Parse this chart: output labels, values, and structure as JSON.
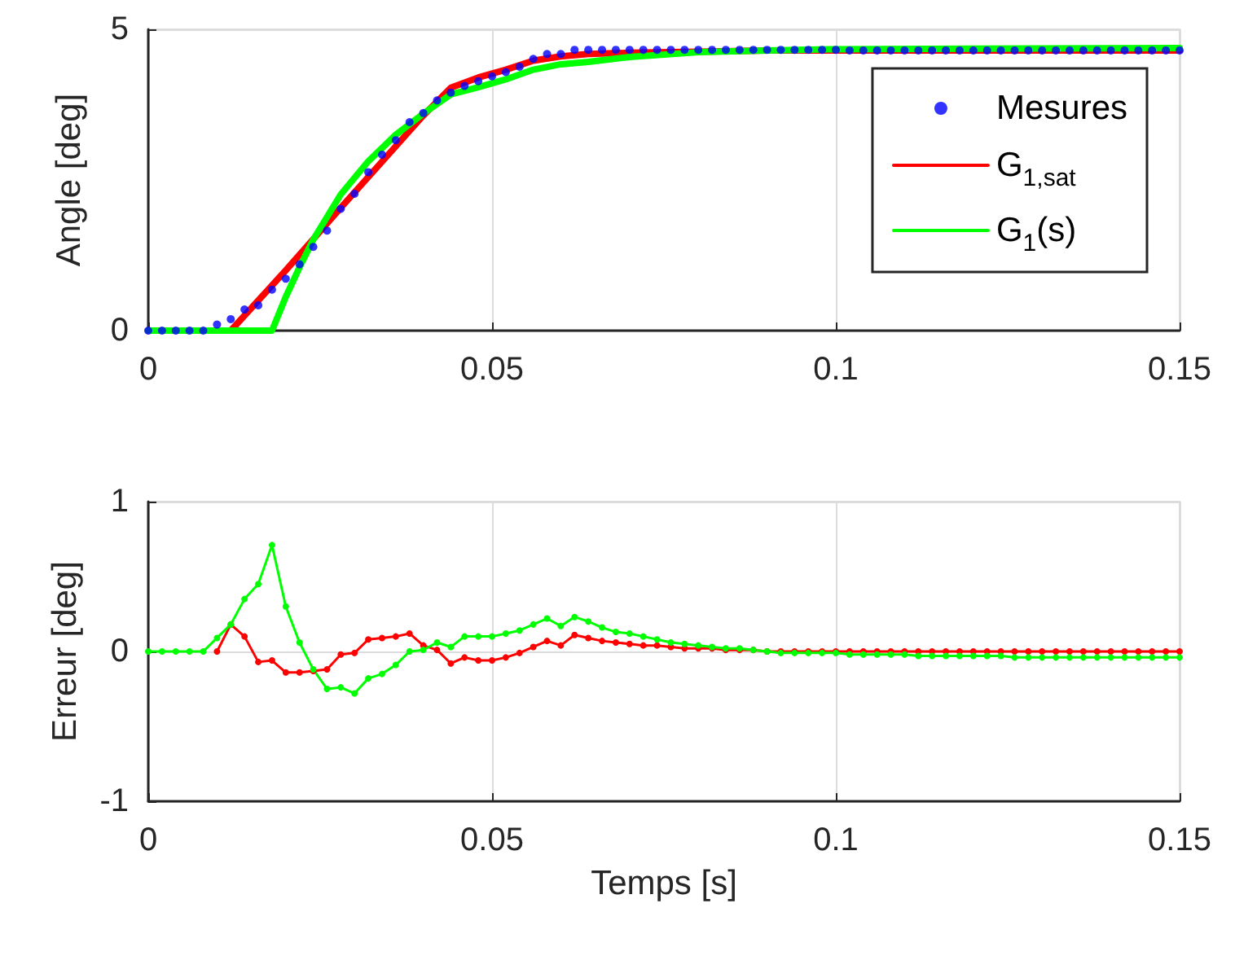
{
  "chart_data": [
    {
      "type": "line",
      "ylabel": "Angle [deg]",
      "xlim": [
        0,
        0.15
      ],
      "xticks": [
        0,
        0.05,
        0.1,
        0.15
      ],
      "ylim": [
        0,
        5
      ],
      "yticks": [
        0,
        5
      ],
      "grid": true,
      "legend": "right",
      "series": [
        {
          "name": "Mesures",
          "type": "scatter",
          "marker": "circle",
          "color": "#0000ff",
          "x": [
            0,
            0.002,
            0.004,
            0.006,
            0.008,
            0.01,
            0.012,
            0.014,
            0.016,
            0.018,
            0.02,
            0.022,
            0.024,
            0.026,
            0.028,
            0.03,
            0.032,
            0.034,
            0.036,
            0.038,
            0.04,
            0.042,
            0.044,
            0.046,
            0.048,
            0.05,
            0.052,
            0.054,
            0.056,
            0.058,
            0.06,
            0.062,
            0.064,
            0.066,
            0.068,
            0.07,
            0.072,
            0.074,
            0.076,
            0.078,
            0.08,
            0.082,
            0.084,
            0.086,
            0.088,
            0.09,
            0.092,
            0.094,
            0.096,
            0.098,
            0.1,
            0.102,
            0.104,
            0.106,
            0.108,
            0.11,
            0.112,
            0.114,
            0.116,
            0.118,
            0.12,
            0.122,
            0.124,
            0.126,
            0.128,
            0.13,
            0.132,
            0.134,
            0.136,
            0.138,
            0.14,
            0.142,
            0.144,
            0.146,
            0.148,
            0.15
          ],
          "values": [
            0,
            0,
            0,
            0,
            0,
            0.1,
            0.19,
            0.35,
            0.42,
            0.68,
            0.86,
            1.1,
            1.39,
            1.66,
            2.02,
            2.27,
            2.63,
            2.92,
            3.16,
            3.46,
            3.61,
            3.82,
            3.95,
            4.06,
            4.14,
            4.22,
            4.29,
            4.38,
            4.51,
            4.59,
            4.59,
            4.66,
            4.66,
            4.66,
            4.66,
            4.66,
            4.66,
            4.66,
            4.66,
            4.66,
            4.66,
            4.66,
            4.66,
            4.66,
            4.66,
            4.66,
            4.66,
            4.66,
            4.66,
            4.66,
            4.66,
            4.65,
            4.65,
            4.65,
            4.65,
            4.65,
            4.65,
            4.65,
            4.65,
            4.65,
            4.65,
            4.65,
            4.65,
            4.65,
            4.65,
            4.65,
            4.65,
            4.65,
            4.65,
            4.65,
            4.65,
            4.65,
            4.65,
            4.65,
            4.65,
            4.65
          ]
        },
        {
          "name": "G$_{1,sat}$",
          "marker": "none",
          "color": "#ff0000",
          "x": [
            0,
            0.012,
            0.02,
            0.024,
            0.028,
            0.032,
            0.036,
            0.04,
            0.044,
            0.048,
            0.052,
            0.056,
            0.06,
            0.064,
            0.07,
            0.08,
            0.09,
            0.15
          ],
          "values": [
            0,
            0,
            1.0,
            1.52,
            2.04,
            2.55,
            3.06,
            3.57,
            4.03,
            4.2,
            4.33,
            4.48,
            4.55,
            4.59,
            4.61,
            4.63,
            4.65,
            4.65
          ]
        },
        {
          "name": "G$_{1}$(s)",
          "marker": "none",
          "color": "#00ff00",
          "x": [
            0,
            0.018,
            0.02,
            0.022,
            0.024,
            0.028,
            0.032,
            0.036,
            0.04,
            0.044,
            0.048,
            0.052,
            0.056,
            0.06,
            0.064,
            0.07,
            0.08,
            0.09,
            0.1,
            0.12,
            0.15
          ],
          "values": [
            0,
            0,
            0.56,
            1.05,
            1.51,
            2.26,
            2.81,
            3.25,
            3.6,
            3.92,
            4.04,
            4.17,
            4.33,
            4.42,
            4.46,
            4.54,
            4.62,
            4.65,
            4.67,
            4.68,
            4.69
          ]
        }
      ]
    },
    {
      "type": "line",
      "xlabel": "Temps [s]",
      "ylabel": "Erreur [deg]",
      "xlim": [
        0,
        0.15
      ],
      "xticks": [
        0,
        0.05,
        0.1,
        0.15
      ],
      "ylim": [
        -1,
        1
      ],
      "yticks": [
        -1,
        0,
        1
      ],
      "grid": true,
      "marker": "circle",
      "x": [
        0,
        0.002,
        0.004,
        0.006,
        0.008,
        0.01,
        0.012,
        0.014,
        0.016,
        0.018,
        0.02,
        0.022,
        0.024,
        0.026,
        0.028,
        0.03,
        0.032,
        0.034,
        0.036,
        0.038,
        0.04,
        0.042,
        0.044,
        0.046,
        0.048,
        0.05,
        0.052,
        0.054,
        0.056,
        0.058,
        0.06,
        0.062,
        0.064,
        0.066,
        0.068,
        0.07,
        0.072,
        0.074,
        0.076,
        0.078,
        0.08,
        0.082,
        0.084,
        0.086,
        0.088,
        0.09,
        0.092,
        0.094,
        0.096,
        0.098,
        0.1,
        0.102,
        0.104,
        0.106,
        0.108,
        0.11,
        0.112,
        0.114,
        0.116,
        0.118,
        0.12,
        0.122,
        0.124,
        0.126,
        0.128,
        0.13,
        0.132,
        0.134,
        0.136,
        0.138,
        0.14,
        0.142,
        0.144,
        0.146,
        0.148,
        0.15
      ],
      "series": [
        {
          "color": "#ff0000",
          "values": [
            null,
            null,
            null,
            null,
            null,
            0,
            0.18,
            0.1,
            -0.07,
            -0.06,
            -0.14,
            -0.14,
            -0.13,
            -0.12,
            -0.02,
            -0.01,
            0.08,
            0.09,
            0.1,
            0.12,
            0.04,
            0.01,
            -0.08,
            -0.04,
            -0.06,
            -0.06,
            -0.04,
            -0.01,
            0.03,
            0.07,
            0.04,
            0.11,
            0.09,
            0.07,
            0.06,
            0.05,
            0.04,
            0.04,
            0.03,
            0.02,
            0.02,
            0.02,
            0.01,
            0.01,
            0.01,
            0,
            0,
            0,
            0,
            0,
            0,
            0,
            0,
            0,
            0,
            0,
            0,
            0,
            0,
            0,
            0,
            0,
            0,
            0,
            0,
            0,
            0,
            0,
            0,
            0,
            0,
            0,
            0,
            0,
            0,
            0
          ]
        },
        {
          "color": "#00ff00",
          "values": [
            0,
            0,
            0,
            0,
            0,
            0.09,
            0.18,
            0.35,
            0.45,
            0.71,
            0.3,
            0.06,
            -0.12,
            -0.25,
            -0.24,
            -0.28,
            -0.18,
            -0.15,
            -0.09,
            0,
            0.01,
            0.06,
            0.03,
            0.1,
            0.1,
            0.1,
            0.12,
            0.14,
            0.18,
            0.22,
            0.17,
            0.23,
            0.2,
            0.16,
            0.13,
            0.12,
            0.1,
            0.08,
            0.06,
            0.05,
            0.04,
            0.03,
            0.02,
            0.02,
            0.01,
            0,
            -0.01,
            -0.01,
            -0.01,
            -0.01,
            -0.01,
            -0.02,
            -0.02,
            -0.02,
            -0.02,
            -0.02,
            -0.03,
            -0.03,
            -0.03,
            -0.03,
            -0.03,
            -0.03,
            -0.03,
            -0.04,
            -0.04,
            -0.04,
            -0.04,
            -0.04,
            -0.04,
            -0.04,
            -0.04,
            -0.04,
            -0.04,
            -0.04,
            -0.04,
            -0.04
          ]
        }
      ]
    }
  ]
}
